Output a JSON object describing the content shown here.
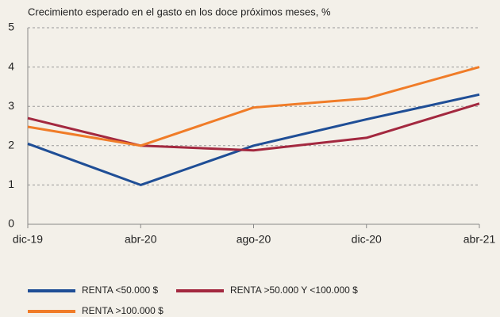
{
  "chart_data": {
    "type": "line",
    "title": "Crecimiento esperado en el gasto en los doce próximos meses, %",
    "categories": [
      "dic-19",
      "abr-20",
      "ago-20",
      "dic-20",
      "abr-21"
    ],
    "series": [
      {
        "name": "RENTA <50.000 $",
        "color": "#1f4e96",
        "values": [
          2.05,
          1.0,
          2.0,
          2.67,
          3.3
        ]
      },
      {
        "name": "RENTA >50.000 Y <100.000 $",
        "color": "#a3283f",
        "values": [
          2.7,
          2.0,
          1.88,
          2.2,
          3.07
        ]
      },
      {
        "name": "RENTA >100.000 $",
        "color": "#f07c28",
        "values": [
          2.48,
          2.0,
          2.97,
          3.2,
          4.0
        ]
      }
    ],
    "ylim": [
      0,
      5
    ],
    "yticks": [
      0,
      1,
      2,
      3,
      4,
      5
    ],
    "grid": true,
    "legend": "bottom"
  }
}
